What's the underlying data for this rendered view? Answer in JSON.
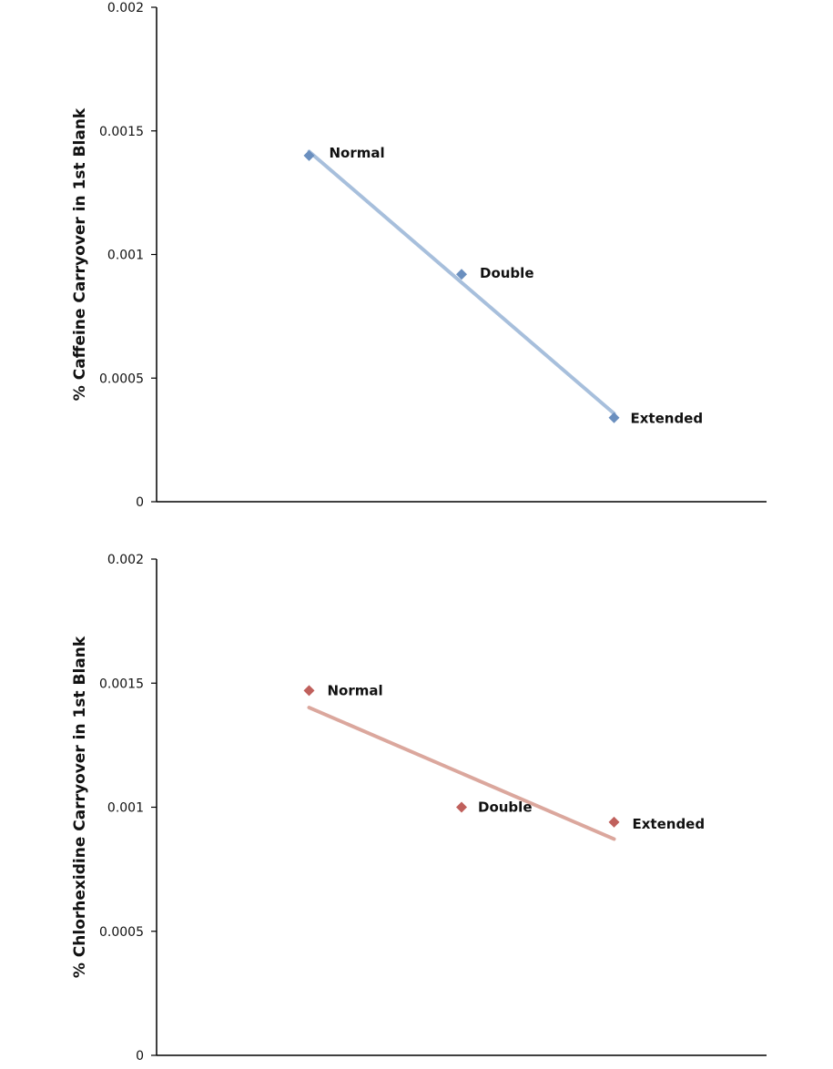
{
  "chart_data": [
    {
      "type": "scatter",
      "title": "",
      "xlabel": "",
      "ylabel": "% Caffeine Carryover in 1st Blank",
      "ylim": [
        0,
        0.002
      ],
      "yticks": [
        "0",
        "0.0005",
        "0.001",
        "0.0015",
        "0.002"
      ],
      "grid": false,
      "legend": "none",
      "x": [
        1,
        2,
        3
      ],
      "xlim": [
        0,
        4
      ],
      "series": [
        {
          "values": [
            0.0014,
            0.00092,
            0.00034
          ],
          "point_labels": [
            "Normal",
            "Double",
            "Extended"
          ],
          "color": "#6a8fbf",
          "trendline": {
            "type": "linear",
            "color": "#a7bfdc"
          }
        }
      ]
    },
    {
      "type": "scatter",
      "title": "",
      "xlabel": "",
      "ylabel": "% Chlorhexidine Carryover in 1st Blank",
      "ylim": [
        0,
        0.002
      ],
      "yticks": [
        "0",
        "0.0005",
        "0.001",
        "0.0015",
        "0.002"
      ],
      "grid": false,
      "legend": "none",
      "x": [
        1,
        2,
        3
      ],
      "xlim": [
        0,
        4
      ],
      "series": [
        {
          "values": [
            0.00147,
            0.001,
            0.00094
          ],
          "point_labels": [
            "Normal",
            "Double",
            "Extended"
          ],
          "color": "#c0605c",
          "trendline": {
            "type": "linear",
            "color": "#dba79d"
          }
        }
      ]
    }
  ]
}
